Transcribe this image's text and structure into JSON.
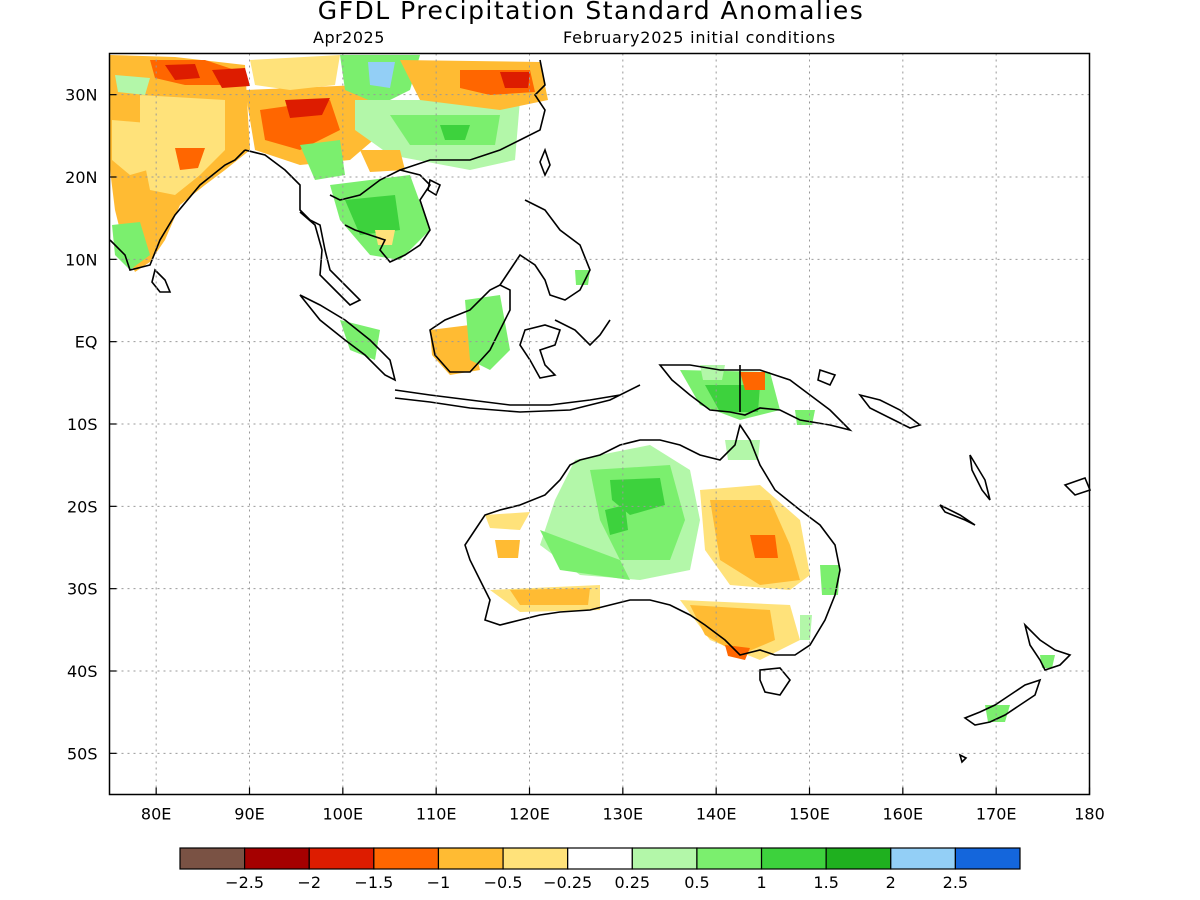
{
  "title": "GFDL Precipitation Standard Anomalies",
  "subtitle_left": "Apr2025",
  "subtitle_right": "February2025 initial conditions",
  "map": {
    "lon_range": [
      75,
      180
    ],
    "lat_range": [
      -55,
      35
    ],
    "lon_ticks": [
      "80E",
      "90E",
      "100E",
      "110E",
      "120E",
      "130E",
      "140E",
      "150E",
      "160E",
      "170E",
      "180"
    ],
    "lat_ticks": [
      "30N",
      "20N",
      "10N",
      "EQ",
      "10S",
      "20S",
      "30S",
      "40S",
      "50S"
    ],
    "gridlines": "dotted"
  },
  "colorbar": {
    "colors": [
      "#7a5244",
      "#a50000",
      "#dd1c00",
      "#ff6600",
      "#ffbb33",
      "#ffe27a",
      "#ffffff",
      "#b3f7a9",
      "#7bef6e",
      "#3dd23d",
      "#1fb01f",
      "#93cff6",
      "#1466dc"
    ],
    "labels": [
      "−2.5",
      "−2",
      "−1.5",
      "−1",
      "−0.5",
      "−0.25",
      "0.25",
      "0.5",
      "1",
      "1.5",
      "2",
      "2.5"
    ]
  }
}
